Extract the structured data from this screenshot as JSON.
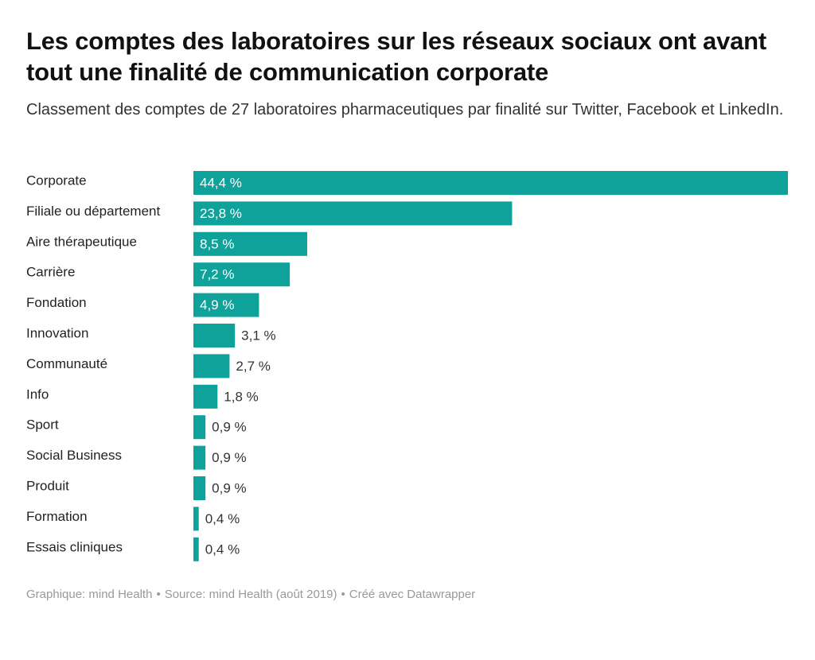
{
  "header": {
    "title": "Les comptes des laboratoires sur les réseaux sociaux ont avant tout une finalité de communication corporate",
    "subtitle": "Classement des comptes de 27 laboratoires pharmaceutiques par finalité sur Twitter, Facebook et LinkedIn."
  },
  "footer": {
    "graphic": "Graphique: mind Health",
    "source": "Source: mind Health (août 2019)",
    "created": "Créé avec Datawrapper",
    "separator": "•"
  },
  "chart_data": {
    "type": "bar",
    "orientation": "horizontal",
    "categories": [
      "Corporate",
      "Filiale ou département",
      "Aire thérapeutique",
      "Carrière",
      "Fondation",
      "Innovation",
      "Communauté",
      "Info",
      "Sport",
      "Social Business",
      "Produit",
      "Formation",
      "Essais cliniques"
    ],
    "values": [
      44.4,
      23.8,
      8.5,
      7.2,
      4.9,
      3.1,
      2.7,
      1.8,
      0.9,
      0.9,
      0.9,
      0.4,
      0.4
    ],
    "value_labels": [
      "44,4 %",
      "23,8 %",
      "8,5 %",
      "7,2 %",
      "4,9 %",
      "3,1 %",
      "2,7 %",
      "1,8 %",
      "0,9 %",
      "0,9 %",
      "0,9 %",
      "0,4 %",
      "0,4 %"
    ],
    "xlim": [
      0,
      44.4
    ],
    "bar_color": "#0fa29b",
    "label_inside_color": "#ffffff",
    "label_outside_color": "#333333",
    "grid": false,
    "legend": "none"
  }
}
